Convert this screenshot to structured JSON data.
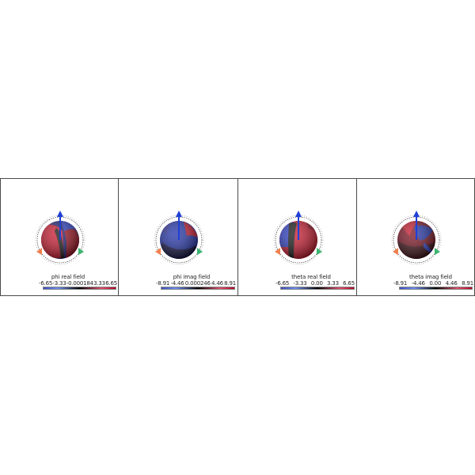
{
  "panels": [
    {
      "id": "phi-real",
      "title": "phi real field",
      "ticks": [
        "-6.65",
        "-3.33",
        "-0.000184",
        "3.33",
        "6.65"
      ],
      "pattern": "lobes-red-left"
    },
    {
      "id": "phi-imag",
      "title": "phi imag field",
      "ticks": [
        "-8.91",
        "-4.46",
        "0.000246",
        "4.46",
        "8.91"
      ],
      "pattern": "blue-dominant"
    },
    {
      "id": "theta-real",
      "title": "theta real field",
      "ticks": [
        "-6.65",
        "-3.33",
        "0.00",
        "3.33",
        "6.65"
      ],
      "pattern": "red-dominant"
    },
    {
      "id": "theta-imag",
      "title": "theta imag field",
      "ticks": [
        "-8.91",
        "-4.46",
        "0.00",
        "4.46",
        "8.91"
      ],
      "pattern": "mixed-dark"
    }
  ],
  "colors": {
    "colormap_low": "#3b4cc0",
    "colormap_mid": "#000000",
    "colormap_high": "#b40426",
    "axis_z": "#1f3fd6",
    "axis_x": "#f08050",
    "axis_y": "#3cb371",
    "border": "#4a4a4a"
  },
  "icons": {
    "z_axis": "arrow-up-icon",
    "x_axis": "cone-left-icon",
    "y_axis": "cone-right-icon"
  }
}
